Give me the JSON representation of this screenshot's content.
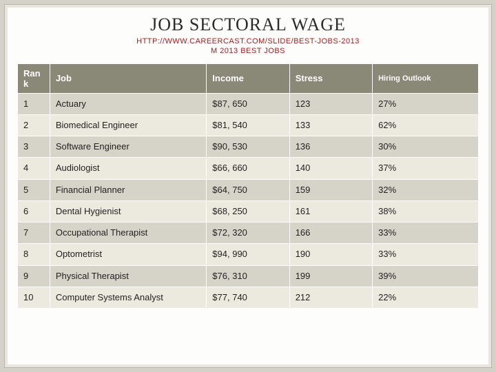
{
  "title": "JOB SECTORAL WAGE",
  "subtitle_line1": "HTTP://WWW.CAREERCAST.COM/SLIDE/BEST-JOBS-2013",
  "subtitle_line2": "M 2013 BEST JOBS",
  "table": {
    "columns": [
      "Ran k",
      "Job",
      "Income",
      "Stress",
      "Hiring Outlook"
    ],
    "col_widths_pct": [
      7,
      34,
      18,
      18,
      23
    ],
    "header_bg": "#8a8876",
    "header_fg": "#ffffff",
    "row_odd_bg": "#d6d4c8",
    "row_even_bg": "#eceadf",
    "rows": [
      [
        "1",
        "Actuary",
        "$87, 650",
        "123",
        "27%"
      ],
      [
        "2",
        "Biomedical Engineer",
        "$81, 540",
        "133",
        "62%"
      ],
      [
        "3",
        "Software Engineer",
        "$90, 530",
        "136",
        "30%"
      ],
      [
        "4",
        " Audiologist",
        "$66, 660",
        "140",
        "37%"
      ],
      [
        "5",
        "Financial Planner",
        "$64, 750",
        "159",
        "32%"
      ],
      [
        "6",
        "Dental Hygienist",
        "$68, 250",
        "161",
        "38%"
      ],
      [
        "7",
        "Occupational Therapist",
        "$72, 320",
        "166",
        "33%"
      ],
      [
        "8",
        "Optometrist",
        "$94, 990",
        "190",
        "33%"
      ],
      [
        "9",
        "Physical Therapist",
        "$76, 310",
        "199",
        "39%"
      ],
      [
        "10",
        "Computer Systems Analyst",
        "$77, 740",
        "212",
        "22%"
      ]
    ]
  },
  "colors": {
    "page_bg": "#d4d1c8",
    "frame_bg": "#fdfdfb",
    "frame_border": "#b8b5ac",
    "title_color": "#2b2b2b",
    "subtitle_color": "#a02020"
  }
}
